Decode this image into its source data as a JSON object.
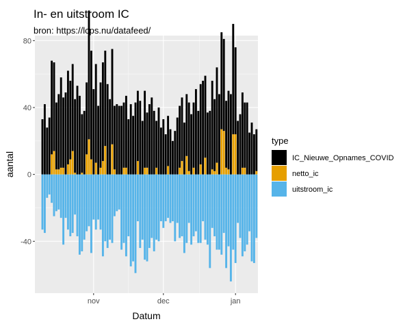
{
  "chart_data": {
    "type": "bar",
    "title": "In- en uitstroom IC",
    "subtitle": "bron: https://lcps.nu/datafeed/",
    "xlabel": "Datum",
    "ylabel": "aantal",
    "ylim": [
      -71,
      83
    ],
    "grid": true,
    "legend_position": "right",
    "legend_title": "type",
    "x_tick_labels": [
      "nov",
      "dec",
      "jan"
    ],
    "x_tick_days": [
      22,
      52,
      83
    ],
    "y_ticks": [
      -40,
      0,
      40,
      80
    ],
    "y_tick_labels": [
      "-40",
      "0",
      "40",
      "80"
    ],
    "day_start": 0,
    "series": [
      {
        "name": "IC_Nieuwe_Opnames_COVID",
        "color": "#000000",
        "values": [
          33,
          42,
          28,
          34,
          56,
          53,
          40,
          45,
          54,
          42,
          49,
          56,
          47,
          52,
          44,
          53,
          47,
          35,
          38,
          43,
          77,
          65,
          51,
          59,
          41,
          51,
          59,
          57,
          54,
          45,
          57,
          38,
          42,
          41,
          41,
          39,
          43,
          33,
          42,
          35,
          43,
          42,
          44,
          32,
          46,
          33,
          42,
          46,
          38,
          28,
          40,
          28,
          33,
          24,
          30,
          27,
          20,
          26,
          34,
          37,
          38,
          31,
          37,
          41,
          36,
          39,
          51,
          38,
          48,
          56,
          49,
          37,
          38,
          53,
          43,
          57,
          48,
          58,
          55,
          40,
          47,
          48,
          66,
          52,
          32,
          36,
          45,
          39,
          43,
          25,
          31,
          24,
          25
        ]
      },
      {
        "name": "netto_ic",
        "color": "#E69F00",
        "values": [
          0,
          0,
          0,
          0,
          12,
          14,
          3,
          3,
          4,
          4,
          0,
          6,
          9,
          14,
          1,
          0,
          0,
          1,
          0,
          12,
          21,
          9,
          0,
          7,
          0,
          4,
          8,
          17,
          0,
          0,
          18,
          3,
          0,
          0,
          0,
          4,
          4,
          0,
          0,
          0,
          0,
          8,
          0,
          0,
          4,
          4,
          0,
          0,
          0,
          4,
          0,
          0,
          0,
          0,
          5,
          0,
          0,
          0,
          0,
          4,
          8,
          0,
          11,
          2,
          0,
          4,
          0,
          0,
          6,
          0,
          10,
          0,
          0,
          3,
          2,
          7,
          0,
          27,
          26,
          4,
          3,
          0,
          24,
          24,
          0,
          0,
          4,
          4,
          0,
          0,
          0,
          0,
          2
        ]
      },
      {
        "name": "uitstroom_ic",
        "color": "#56B4E9",
        "values": [
          -33,
          -35,
          -14,
          -12,
          -17,
          -25,
          -22,
          -21,
          -26,
          -42,
          -26,
          -33,
          -37,
          -35,
          -24,
          -37,
          -48,
          -46,
          -39,
          -34,
          -31,
          -47,
          -27,
          -33,
          -27,
          -33,
          -49,
          -40,
          -44,
          -39,
          -41,
          -25,
          -22,
          -21,
          -45,
          -41,
          -49,
          -37,
          -55,
          -52,
          -59,
          -28,
          -44,
          -39,
          -51,
          -52,
          -44,
          -38,
          -46,
          -39,
          -40,
          -28,
          -32,
          -28,
          -26,
          -29,
          -28,
          -40,
          -29,
          -38,
          -37,
          -47,
          -41,
          -29,
          -42,
          -37,
          -34,
          -41,
          -41,
          -28,
          -39,
          -42,
          -56,
          -32,
          -37,
          -45,
          -45,
          -48,
          -35,
          -56,
          -43,
          -64,
          -45,
          -53,
          -29,
          -38,
          -49,
          -46,
          -42,
          -34,
          -52,
          -53,
          -38
        ]
      }
    ]
  }
}
